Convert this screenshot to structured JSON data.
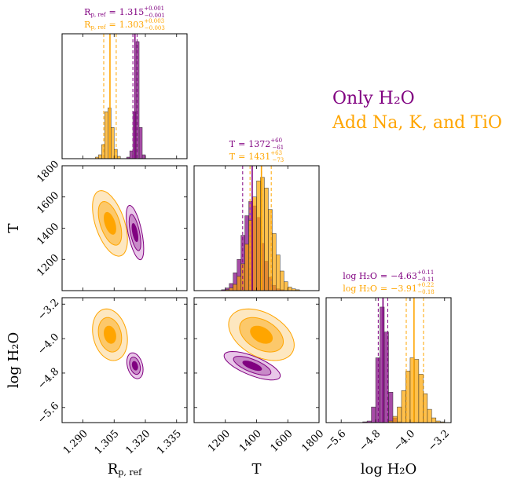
{
  "chart_data": {
    "type": "corner",
    "equals": "=",
    "legend": "upper right",
    "variables": [
      {
        "label": "R",
        "label_sub": "p, ref",
        "lim": [
          1.28,
          1.34
        ],
        "ticks": [
          {
            "value": 1.29,
            "label": "1.290"
          },
          1.305,
          {
            "value": 1.32,
            "label": "1.320"
          },
          1.335
        ]
      },
      {
        "label": "T",
        "label_sub": null,
        "lim": [
          1000,
          1800
        ],
        "ticks": [
          1200,
          1400,
          1600,
          1800
        ]
      },
      {
        "label": "log H₂O",
        "label_sub": null,
        "lim": [
          -5.95,
          -3.05
        ],
        "ticks": [
          {
            "value": -5.6,
            "label": "−5.6"
          },
          {
            "value": -4.8,
            "label": "−4.8"
          },
          {
            "value": -4.0,
            "label": "−4.0"
          },
          {
            "value": -3.2,
            "label": "−3.2"
          }
        ]
      }
    ],
    "series": [
      {
        "name": "Only H₂O",
        "color": "#800080",
        "fills": [
          "#e8c6e8",
          "#c88ac8",
          "#800080"
        ],
        "stats": [
          {
            "median": 1.315,
            "upper": {
              "value": 0.001,
              "label": "+0.001"
            },
            "lower": {
              "value": -0.001,
              "label": "−0.001"
            }
          },
          {
            "median": 1372,
            "upper": {
              "value": 60,
              "label": "+60"
            },
            "lower": {
              "value": -61,
              "label": "−61"
            }
          },
          {
            "median": {
              "value": -4.63,
              "label": "−4.63"
            },
            "upper": {
              "value": 0.11,
              "label": "+0.11"
            },
            "lower": {
              "value": -0.11,
              "label": "−0.11"
            }
          }
        ]
      },
      {
        "name": "Add Na, K, and TiO",
        "color": "#ffa500",
        "fills": [
          "#fde7c0",
          "#fcc86a",
          "#ffa500"
        ],
        "stats": [
          {
            "median": 1.303,
            "upper": {
              "value": 0.003,
              "label": "+0.003"
            },
            "lower": {
              "value": -0.003,
              "label": "−0.003"
            }
          },
          {
            "median": 1431,
            "upper": {
              "value": 63,
              "label": "+63"
            },
            "lower": {
              "value": -73,
              "label": "−73"
            }
          },
          {
            "median": {
              "value": -3.91,
              "label": "−3.91"
            },
            "upper": {
              "value": 0.22,
              "label": "+0.22"
            },
            "lower": {
              "value": -0.18,
              "label": "−0.18"
            }
          }
        ]
      }
    ],
    "histograms": [
      {
        "ylim": [
          0,
          160
        ],
        "bins": [
          1.296,
          1.2975,
          1.299,
          1.3005,
          1.302,
          1.3035,
          1.305,
          1.3065,
          1.308,
          1.3095,
          1.311,
          1.3125,
          1.314,
          1.3155,
          1.317,
          1.3185,
          1.32
        ],
        "counts": [
          [
            0,
            0,
            0,
            0,
            0,
            0,
            0,
            0,
            0,
            0,
            2,
            10,
            60,
            150,
            40,
            5
          ],
          [
            2,
            5,
            18,
            60,
            65,
            40,
            12,
            3,
            0,
            0,
            0,
            0,
            0,
            0,
            0,
            0
          ]
        ]
      },
      {
        "ylim": [
          0,
          140
        ],
        "bins": [
          1100,
          1125,
          1150,
          1175,
          1200,
          1225,
          1250,
          1275,
          1300,
          1325,
          1350,
          1375,
          1400,
          1425,
          1450,
          1475,
          1500,
          1525,
          1550,
          1575,
          1600,
          1625,
          1650,
          1675,
          1700
        ],
        "counts": [
          [
            0,
            0,
            0,
            1,
            3,
            8,
            20,
            35,
            62,
            84,
            100,
            95,
            82,
            53,
            33,
            15,
            6,
            2,
            1,
            0,
            0,
            0,
            0,
            0
          ],
          [
            0,
            0,
            0,
            0,
            1,
            3,
            7,
            16,
            30,
            52,
            79,
            105,
            123,
            127,
            115,
            91,
            64,
            40,
            22,
            10,
            4,
            2,
            1,
            0
          ]
        ]
      },
      {
        "ylim": [
          0,
          160
        ],
        "bins": [
          -5.2,
          -5.1,
          -5.0,
          -4.9,
          -4.8,
          -4.7,
          -4.6,
          -4.5,
          -4.4,
          -4.3,
          -4.2,
          -4.1,
          -4.0,
          -3.9,
          -3.8,
          -3.7,
          -3.6,
          -3.5,
          -3.4,
          -3.3,
          -3.2
        ],
        "counts": [
          [
            0,
            1,
            2,
            20,
            83,
            148,
            116,
            39,
            6,
            1,
            0,
            0,
            0,
            0,
            0,
            0,
            0,
            0,
            0,
            0
          ],
          [
            0,
            0,
            0,
            0,
            0,
            0,
            0,
            2,
            8,
            20,
            41,
            66,
            83,
            81,
            62,
            37,
            17,
            6,
            2,
            1
          ]
        ]
      }
    ],
    "contour_levels": [
      3,
      2,
      1
    ],
    "contours": [
      {
        "x": 0,
        "y": 1,
        "params": [
          {
            "center": [
              1.315,
              1372
            ],
            "sigma": [
              0.0014,
              58
            ],
            "rho": -0.6
          },
          {
            "center": [
              1.303,
              1431
            ],
            "sigma": [
              0.0028,
              70
            ],
            "rho": -0.5
          }
        ]
      },
      {
        "x": 0,
        "y": 2,
        "params": [
          {
            "center": [
              1.315,
              -4.63
            ],
            "sigma": [
              0.0013,
              0.1
            ],
            "rho": -0.3
          },
          {
            "center": [
              1.303,
              -3.91
            ],
            "sigma": [
              0.0028,
              0.2
            ],
            "rho": -0.2
          }
        ]
      },
      {
        "x": 1,
        "y": 2,
        "params": [
          {
            "center": [
              1372,
              -4.63
            ],
            "sigma": [
              60,
              0.11
            ],
            "rho": -0.7
          },
          {
            "center": [
              1431,
              -3.91
            ],
            "sigma": [
              70,
              0.2
            ],
            "rho": -0.4
          }
        ]
      }
    ]
  }
}
